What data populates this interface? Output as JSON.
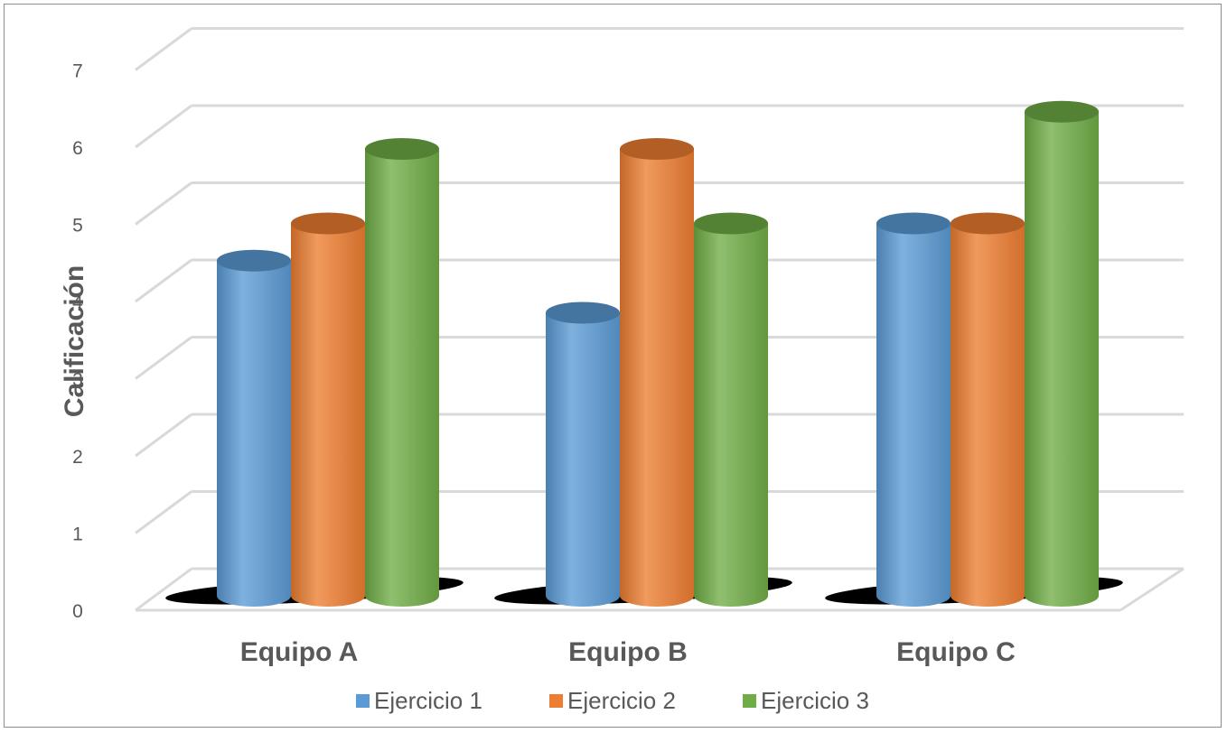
{
  "chart_data": {
    "type": "bar",
    "style": "3d-cylinder",
    "categories": [
      "Equipo A",
      "Equipo B",
      "Equipo C"
    ],
    "series": [
      {
        "name": "Ejercicio 1",
        "values": [
          4.5,
          3.8,
          5.0
        ],
        "color": "#5B9BD5"
      },
      {
        "name": "Ejercicio 2",
        "values": [
          5.0,
          6.0,
          5.0
        ],
        "color": "#ED7D31"
      },
      {
        "name": "Ejercicio 3",
        "values": [
          6.0,
          5.0,
          6.5
        ],
        "color": "#70AD47"
      }
    ],
    "ylabel": "Calificación",
    "xlabel": "",
    "ylim": [
      0,
      7
    ],
    "yticks": [
      "0",
      "1",
      "2",
      "3",
      "4",
      "5",
      "6",
      "7"
    ],
    "grid": true,
    "legend": "bottom"
  }
}
